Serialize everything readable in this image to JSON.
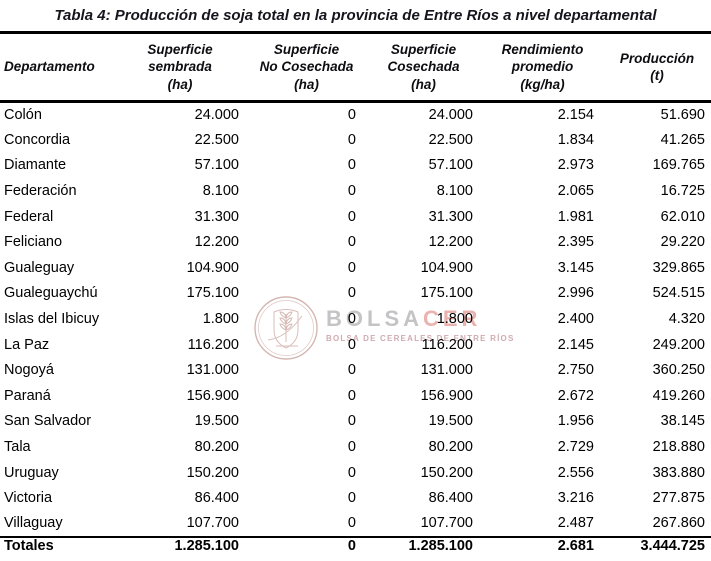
{
  "title": "Tabla 4: Producción de soja total en la provincia de Entre Ríos a nivel departamental",
  "watermark": {
    "brand_gray": "BOLSA",
    "brand_red": "CER",
    "subtitle": "BOLSA DE CEREALES DE ENTRE RÍOS",
    "logo": "bolsacer-crest",
    "colors": {
      "gray": "#c4c4c6",
      "red": "#eab3af",
      "subtitle": "#d0abb0",
      "ring": "#cdaba5"
    }
  },
  "table": {
    "columns": [
      {
        "key": "departamento",
        "label": "Departamento"
      },
      {
        "key": "superficie-sembrada",
        "label": "Superficie\nsembrada\n(ha)"
      },
      {
        "key": "superficie-no-cosechada",
        "label": "Superficie\nNo Cosechada\n(ha)"
      },
      {
        "key": "superficie-cosechada",
        "label": "Superficie\nCosechada\n(ha)"
      },
      {
        "key": "rendimiento-promedio",
        "label": "Rendimiento\npromedio\n(kg/ha)"
      },
      {
        "key": "produccion",
        "label": "Producción\n(t)"
      }
    ],
    "rows": [
      [
        "Colón",
        "24.000",
        "0",
        "24.000",
        "2.154",
        "51.690"
      ],
      [
        "Concordia",
        "22.500",
        "0",
        "22.500",
        "1.834",
        "41.265"
      ],
      [
        "Diamante",
        "57.100",
        "0",
        "57.100",
        "2.973",
        "169.765"
      ],
      [
        "Federación",
        "8.100",
        "0",
        "8.100",
        "2.065",
        "16.725"
      ],
      [
        "Federal",
        "31.300",
        "0",
        "31.300",
        "1.981",
        "62.010"
      ],
      [
        "Feliciano",
        "12.200",
        "0",
        "12.200",
        "2.395",
        "29.220"
      ],
      [
        "Gualeguay",
        "104.900",
        "0",
        "104.900",
        "3.145",
        "329.865"
      ],
      [
        "Gualeguaychú",
        "175.100",
        "0",
        "175.100",
        "2.996",
        "524.515"
      ],
      [
        "Islas del Ibicuy",
        "1.800",
        "0",
        "1.800",
        "2.400",
        "4.320"
      ],
      [
        "La Paz",
        "116.200",
        "0",
        "116.200",
        "2.145",
        "249.200"
      ],
      [
        "Nogoyá",
        "131.000",
        "0",
        "131.000",
        "2.750",
        "360.250"
      ],
      [
        "Paraná",
        "156.900",
        "0",
        "156.900",
        "2.672",
        "419.260"
      ],
      [
        "San Salvador",
        "19.500",
        "0",
        "19.500",
        "1.956",
        "38.145"
      ],
      [
        "Tala",
        "80.200",
        "0",
        "80.200",
        "2.729",
        "218.880"
      ],
      [
        "Uruguay",
        "150.200",
        "0",
        "150.200",
        "2.556",
        "383.880"
      ],
      [
        "Victoria",
        "86.400",
        "0",
        "86.400",
        "3.216",
        "277.875"
      ],
      [
        "Villaguay",
        "107.700",
        "0",
        "107.700",
        "2.487",
        "267.860"
      ]
    ],
    "totals": [
      "Totales",
      "1.285.100",
      "0",
      "1.285.100",
      "2.681",
      "3.444.725"
    ]
  },
  "colors": {
    "text": "#000000",
    "title": "#15151d",
    "border": "#000000",
    "background": "#ffffff"
  }
}
